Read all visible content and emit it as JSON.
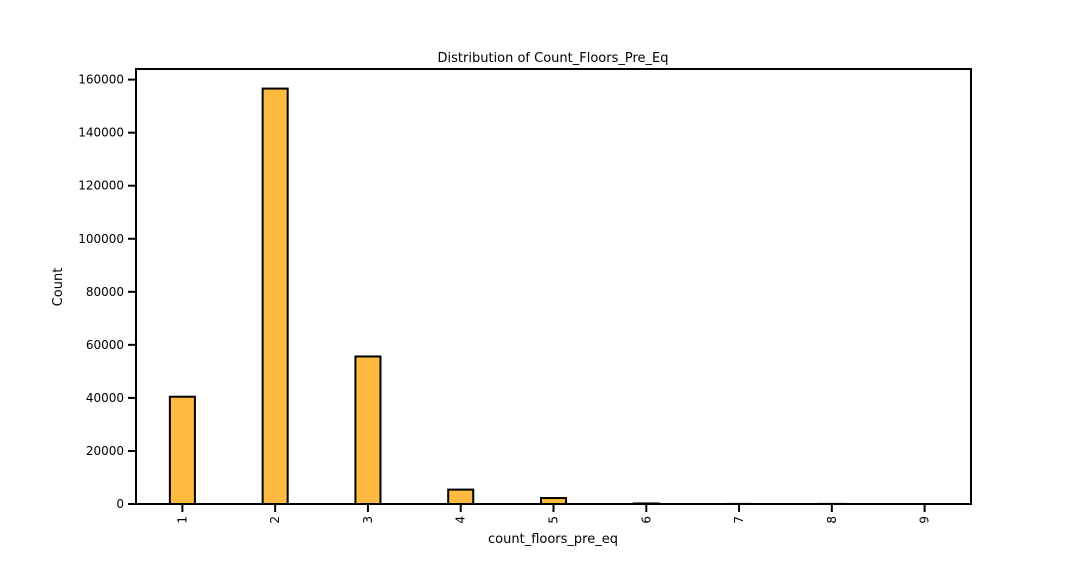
{
  "chart_data": {
    "type": "bar",
    "title": "Distribution of Count_Floors_Pre_Eq",
    "xlabel": "count_floors_pre_eq",
    "ylabel": "Count",
    "categories": [
      "1",
      "2",
      "3",
      "4",
      "5",
      "6",
      "7",
      "8",
      "9"
    ],
    "x": [
      1,
      2,
      3,
      4,
      5,
      6,
      7,
      8,
      9
    ],
    "values": [
      40441,
      156623,
      55617,
      5424,
      2246,
      209,
      39,
      45,
      1
    ],
    "xlim": [
      0.5,
      9.5
    ],
    "ylim": [
      0,
      164000
    ],
    "yticks": [
      0,
      20000,
      40000,
      60000,
      80000,
      100000,
      120000,
      140000,
      160000
    ],
    "ytick_labels": [
      "0",
      "20000",
      "40000",
      "60000",
      "80000",
      "100000",
      "120000",
      "140000",
      "160000"
    ],
    "xtick_labels": [
      "1",
      "2",
      "3",
      "4",
      "5",
      "6",
      "7",
      "8",
      "9"
    ],
    "bar_color": "#ffbb3f",
    "edge_color": "#000000",
    "grid": false,
    "legend": false
  }
}
